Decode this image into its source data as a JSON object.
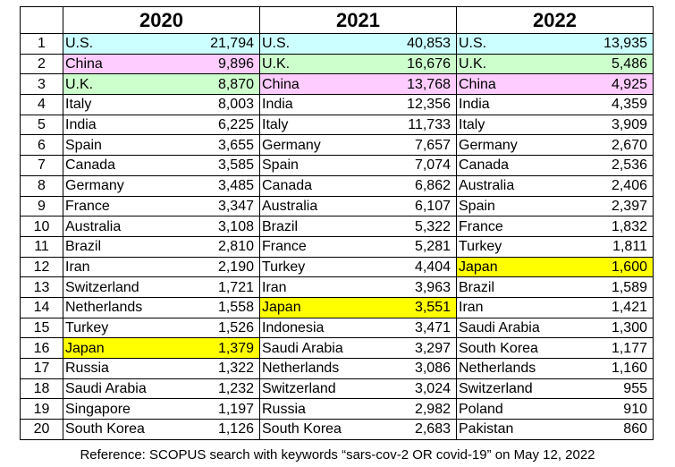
{
  "years": [
    "2020",
    "2021",
    "2022"
  ],
  "colors": {
    "us": "#ccffff",
    "china": "#ffccff",
    "uk": "#ccffcc",
    "japan": "#ffff00"
  },
  "ranks": [
    "1",
    "2",
    "3",
    "4",
    "5",
    "6",
    "7",
    "8",
    "9",
    "10",
    "11",
    "12",
    "13",
    "14",
    "15",
    "16",
    "17",
    "18",
    "19",
    "20"
  ],
  "table": {
    "2020": [
      {
        "country": "U.S.",
        "value": "21,794",
        "hl": "us"
      },
      {
        "country": "China",
        "value": "9,896",
        "hl": "china"
      },
      {
        "country": "U.K.",
        "value": "8,870",
        "hl": "uk"
      },
      {
        "country": "Italy",
        "value": "8,003"
      },
      {
        "country": "India",
        "value": "6,225"
      },
      {
        "country": "Spain",
        "value": "3,655"
      },
      {
        "country": "Canada",
        "value": "3,585"
      },
      {
        "country": "Germany",
        "value": "3,485"
      },
      {
        "country": "France",
        "value": "3,347"
      },
      {
        "country": "Australia",
        "value": "3,108"
      },
      {
        "country": "Brazil",
        "value": "2,810"
      },
      {
        "country": "Iran",
        "value": "2,190"
      },
      {
        "country": "Switzerland",
        "value": "1,721"
      },
      {
        "country": "Netherlands",
        "value": "1,558"
      },
      {
        "country": "Turkey",
        "value": "1,526"
      },
      {
        "country": "Japan",
        "value": "1,379",
        "hl": "japan"
      },
      {
        "country": "Russia",
        "value": "1,322"
      },
      {
        "country": "Saudi Arabia",
        "value": "1,232"
      },
      {
        "country": "Singapore",
        "value": "1,197"
      },
      {
        "country": "South Korea",
        "value": "1,126"
      }
    ],
    "2021": [
      {
        "country": "U.S.",
        "value": "40,853",
        "hl": "us"
      },
      {
        "country": "U.K.",
        "value": "16,676",
        "hl": "uk"
      },
      {
        "country": "China",
        "value": "13,768",
        "hl": "china"
      },
      {
        "country": "India",
        "value": "12,356"
      },
      {
        "country": "Italy",
        "value": "11,733"
      },
      {
        "country": "Germany",
        "value": "7,657"
      },
      {
        "country": "Spain",
        "value": "7,074"
      },
      {
        "country": "Canada",
        "value": "6,862"
      },
      {
        "country": "Australia",
        "value": "6,107"
      },
      {
        "country": "Brazil",
        "value": "5,322"
      },
      {
        "country": "France",
        "value": "5,281"
      },
      {
        "country": "Turkey",
        "value": "4,404"
      },
      {
        "country": "Iran",
        "value": "3,963"
      },
      {
        "country": "Japan",
        "value": "3,551",
        "hl": "japan"
      },
      {
        "country": "Indonesia",
        "value": "3,471"
      },
      {
        "country": "Saudi Arabia",
        "value": "3,297"
      },
      {
        "country": "Netherlands",
        "value": "3,086"
      },
      {
        "country": "Switzerland",
        "value": "3,024"
      },
      {
        "country": "Russia",
        "value": "2,982"
      },
      {
        "country": "South Korea",
        "value": "2,683"
      }
    ],
    "2022": [
      {
        "country": "U.S.",
        "value": "13,935",
        "hl": "us"
      },
      {
        "country": "U.K.",
        "value": "5,486",
        "hl": "uk"
      },
      {
        "country": "China",
        "value": "4,925",
        "hl": "china"
      },
      {
        "country": "India",
        "value": "4,359"
      },
      {
        "country": "Italy",
        "value": "3,909"
      },
      {
        "country": "Germany",
        "value": "2,670"
      },
      {
        "country": "Canada",
        "value": "2,536"
      },
      {
        "country": "Australia",
        "value": "2,406"
      },
      {
        "country": "Spain",
        "value": "2,397"
      },
      {
        "country": "France",
        "value": "1,832"
      },
      {
        "country": "Turkey",
        "value": "1,811"
      },
      {
        "country": "Japan",
        "value": "1,600",
        "hl": "japan"
      },
      {
        "country": "Brazil",
        "value": "1,589"
      },
      {
        "country": "Iran",
        "value": "1,421"
      },
      {
        "country": "Saudi Arabia",
        "value": "1,300"
      },
      {
        "country": "South Korea",
        "value": "1,177"
      },
      {
        "country": "Netherlands",
        "value": "1,160"
      },
      {
        "country": "Switzerland",
        "value": "955"
      },
      {
        "country": "Poland",
        "value": "910"
      },
      {
        "country": "Pakistan",
        "value": "860"
      }
    ]
  },
  "reference": "Reference: SCOPUS search with keywords “sars-cov-2  OR  covid-19” on May 12, 2022"
}
